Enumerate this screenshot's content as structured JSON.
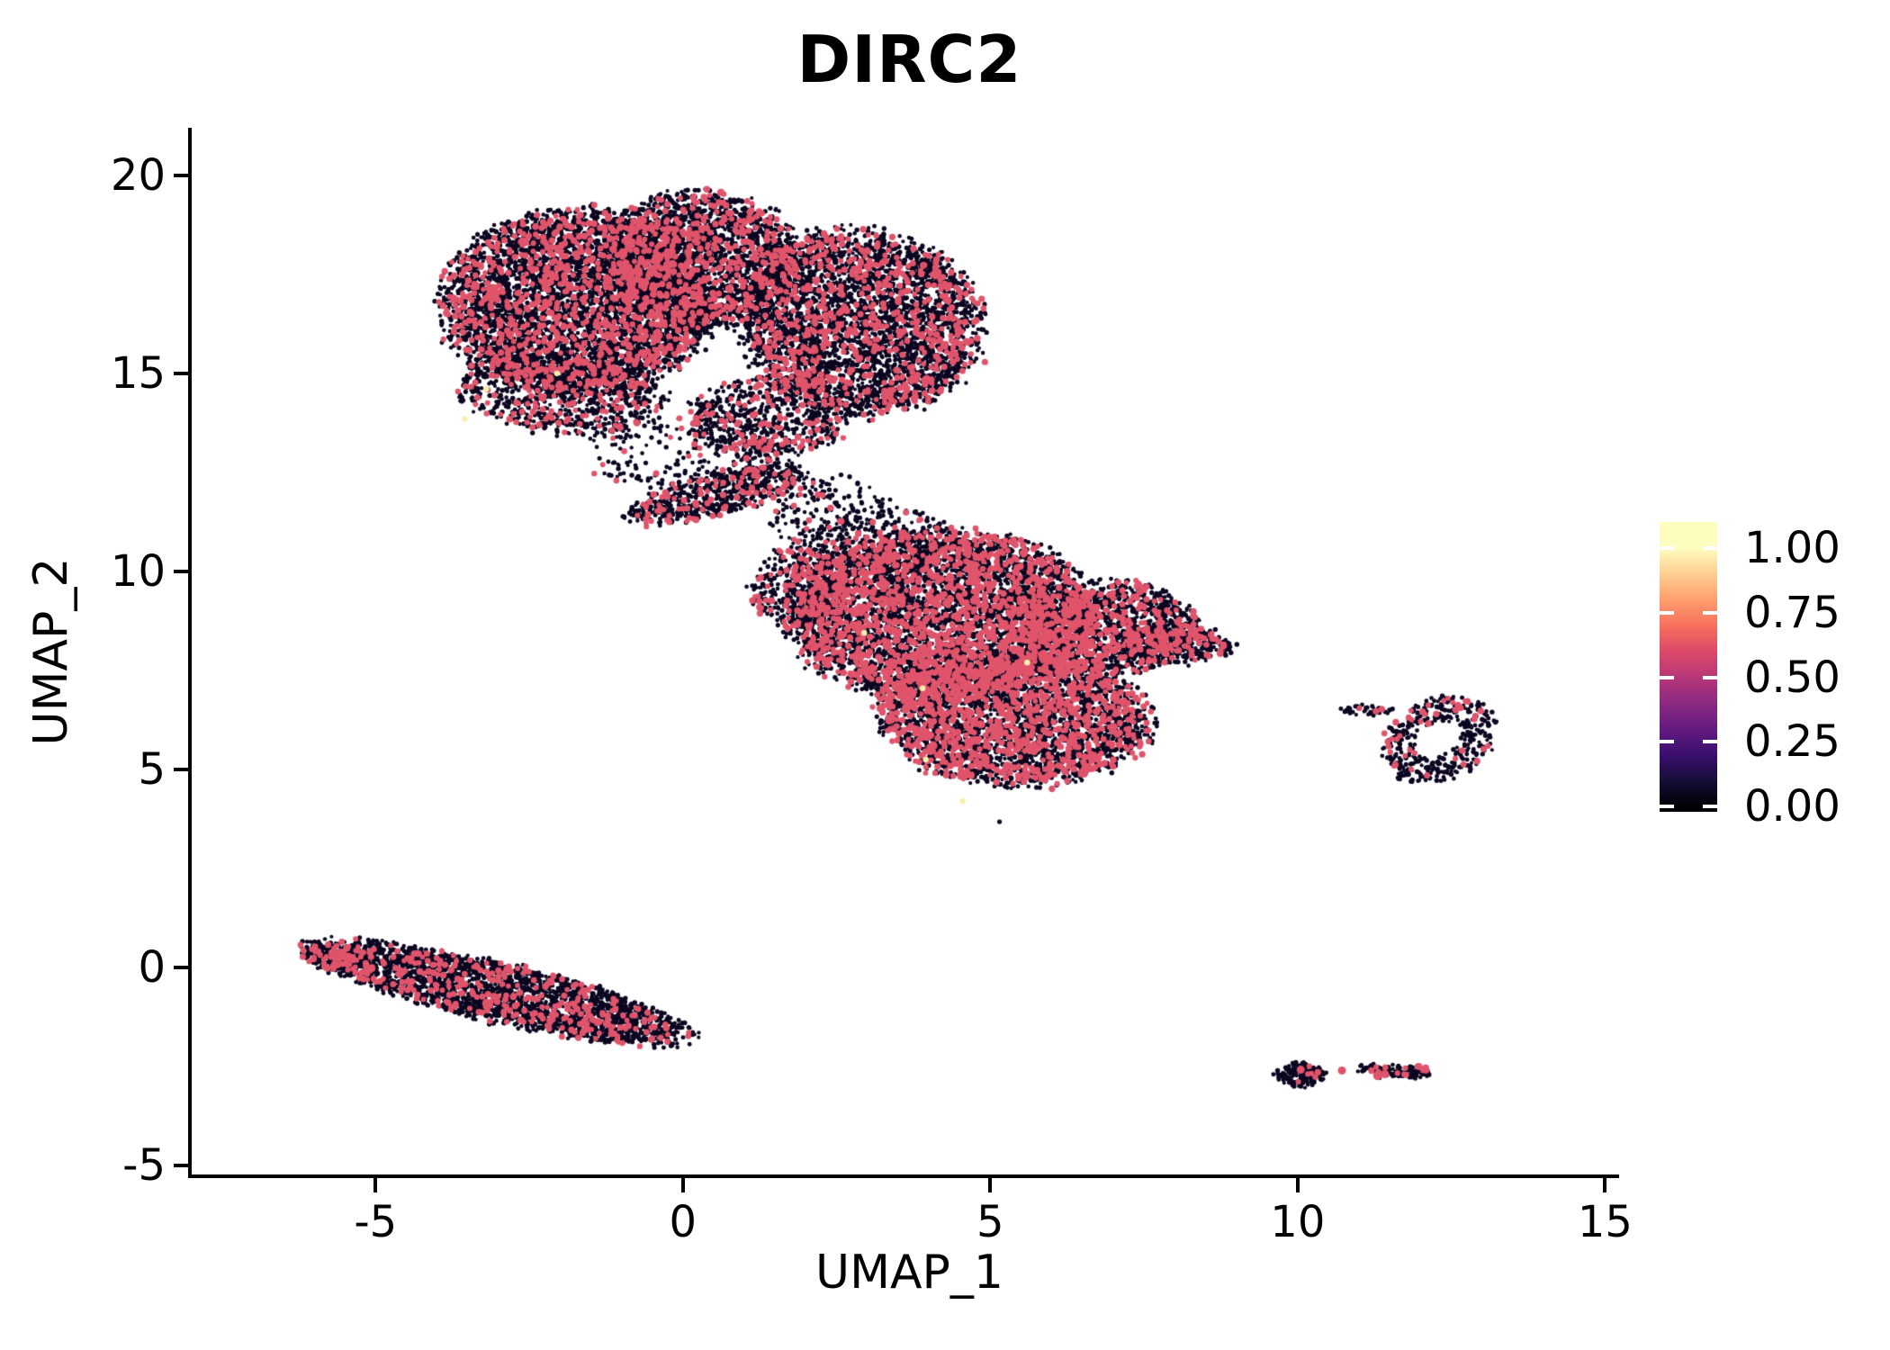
{
  "chart_data": {
    "type": "scatter",
    "title": "DIRC2",
    "xlabel": "UMAP_1",
    "ylabel": "UMAP_2",
    "x_ticks": [
      -5,
      0,
      5,
      10,
      15
    ],
    "x_tick_labels": [
      "-5",
      "0",
      "5",
      "10",
      "15"
    ],
    "y_ticks": [
      -5,
      0,
      5,
      10,
      15,
      20
    ],
    "y_tick_labels": [
      "-5",
      "0",
      "5",
      "10",
      "15",
      "20"
    ],
    "xlim": [
      -8.02,
      15.39
    ],
    "ylim": [
      -5.27,
      21.2
    ],
    "grid": false,
    "background": "#ffffff",
    "axis_color": "#000000",
    "text_color": "#000000",
    "legend": {
      "position": "right",
      "tick_labels": [
        "1.00",
        "0.75",
        "0.50",
        "0.25",
        "0.00"
      ],
      "tick_values": [
        1.0,
        0.75,
        0.5,
        0.25,
        0.0
      ],
      "bar_value_range": [
        -0.02,
        1.1
      ],
      "colormap": "magma",
      "colormap_stops": [
        {
          "v": 0.0,
          "c": "#000004"
        },
        {
          "v": 0.1,
          "c": "#140e36"
        },
        {
          "v": 0.2,
          "c": "#3b0f70"
        },
        {
          "v": 0.3,
          "c": "#641a80"
        },
        {
          "v": 0.4,
          "c": "#8c2981"
        },
        {
          "v": 0.5,
          "c": "#b73779"
        },
        {
          "v": 0.6,
          "c": "#de4968"
        },
        {
          "v": 0.7,
          "c": "#f7705c"
        },
        {
          "v": 0.8,
          "c": "#fe9f6d"
        },
        {
          "v": 0.9,
          "c": "#fecf92"
        },
        {
          "v": 1.0,
          "c": "#fcfdbf"
        }
      ]
    },
    "point_colors": {
      "zero": "#0c0620",
      "mid": "#e0546b",
      "high": "#f5efae"
    },
    "point_radius": {
      "zero": 2.4,
      "mid": 3.3,
      "high": 3.2
    },
    "seed": 20,
    "clusters": [
      {
        "name": "top-left-lobe",
        "shape": "ellipse",
        "center": [
          -1.7,
          16.8
        ],
        "rx": 2.2,
        "ry": 2.35,
        "rot_deg": -8,
        "n": 5000,
        "frac_mid": 0.17
      },
      {
        "name": "top-upper-bump",
        "shape": "ellipse",
        "center": [
          0.3,
          17.9
        ],
        "rx": 1.6,
        "ry": 1.7,
        "rot_deg": 0,
        "n": 2400,
        "frac_mid": 0.17
      },
      {
        "name": "top-right-lobe",
        "shape": "ellipse",
        "center": [
          2.9,
          16.3
        ],
        "rx": 1.95,
        "ry": 2.3,
        "rot_deg": 10,
        "n": 3800,
        "frac_mid": 0.17
      },
      {
        "name": "top-bottom-fringe-left",
        "shape": "ellipse",
        "center": [
          -2.0,
          14.5
        ],
        "rx": 1.7,
        "ry": 1.0,
        "rot_deg": -12,
        "n": 800,
        "frac_mid": 0.15
      },
      {
        "name": "top-bottom-fringe-mid",
        "shape": "ellipse",
        "center": [
          1.4,
          13.9
        ],
        "rx": 1.3,
        "ry": 1.0,
        "rot_deg": 0,
        "n": 700,
        "frac_mid": 0.15
      },
      {
        "name": "top-sparse-tail",
        "shape": "ellipse",
        "center": [
          0.1,
          13.0
        ],
        "rx": 1.7,
        "ry": 0.9,
        "rot_deg": 0,
        "n": 260,
        "frac_mid": 0.12
      },
      {
        "name": "bridge-arm",
        "shape": "ellipse",
        "center": [
          0.55,
          11.95
        ],
        "rx": 1.55,
        "ry": 0.5,
        "rot_deg": 22,
        "n": 620,
        "frac_mid": 0.14
      },
      {
        "name": "bridge-scatter",
        "shape": "ellipse",
        "center": [
          2.4,
          11.4
        ],
        "rx": 0.95,
        "ry": 1.05,
        "rot_deg": 0,
        "n": 200,
        "frac_mid": 0.12
      },
      {
        "name": "mid-upper",
        "shape": "ellipse",
        "center": [
          4.2,
          8.9
        ],
        "rx": 2.5,
        "ry": 2.15,
        "rot_deg": 0,
        "n": 5200,
        "frac_mid": 0.27
      },
      {
        "name": "mid-lower",
        "shape": "ellipse",
        "center": [
          5.4,
          6.3
        ],
        "rx": 2.25,
        "ry": 1.65,
        "rot_deg": -6,
        "n": 3300,
        "frac_mid": 0.27
      },
      {
        "name": "mid-right",
        "shape": "ellipse",
        "center": [
          6.9,
          8.6
        ],
        "rx": 1.5,
        "ry": 1.15,
        "rot_deg": 0,
        "n": 1300,
        "frac_mid": 0.22
      },
      {
        "name": "mid-right-tip",
        "shape": "ellipse",
        "center": [
          8.0,
          8.2
        ],
        "rx": 0.95,
        "ry": 0.5,
        "rot_deg": -8,
        "n": 320,
        "frac_mid": 0.18
      },
      {
        "name": "mid-top-trickle",
        "shape": "ellipse",
        "center": [
          3.1,
          10.7
        ],
        "rx": 1.4,
        "ry": 0.85,
        "rot_deg": 15,
        "n": 260,
        "frac_mid": 0.15
      },
      {
        "name": "mid-left-bump",
        "shape": "ellipse",
        "center": [
          1.9,
          9.6
        ],
        "rx": 0.8,
        "ry": 1.0,
        "rot_deg": 0,
        "n": 350,
        "frac_mid": 0.2
      },
      {
        "name": "island-ring",
        "shape": "ring",
        "center": [
          12.3,
          5.75
        ],
        "rx": 0.85,
        "ry": 1.15,
        "inner": 0.42,
        "rot_deg": -25,
        "n": 430,
        "frac_mid": 0.13
      },
      {
        "name": "island-streak",
        "shape": "ellipse",
        "center": [
          11.15,
          6.5
        ],
        "rx": 0.45,
        "ry": 0.12,
        "rot_deg": -5,
        "n": 40,
        "frac_mid": 0.08
      },
      {
        "name": "band-lower-left",
        "shape": "ellipse",
        "center": [
          -3.0,
          -0.62
        ],
        "rx": 3.3,
        "ry": 0.72,
        "rot_deg": -20,
        "n": 2600,
        "frac_mid": 0.13
      },
      {
        "name": "band-left-tip",
        "shape": "ellipse",
        "center": [
          -5.6,
          0.25
        ],
        "rx": 0.6,
        "ry": 0.3,
        "rot_deg": -20,
        "n": 180,
        "frac_mid": 0.3
      },
      {
        "name": "islet-left",
        "shape": "ellipse",
        "center": [
          10.05,
          -2.7
        ],
        "rx": 0.4,
        "ry": 0.3,
        "rot_deg": 0,
        "n": 170,
        "frac_mid": 0.04
      },
      {
        "name": "islet-right",
        "shape": "ellipse",
        "center": [
          11.6,
          -2.62
        ],
        "rx": 0.62,
        "ry": 0.15,
        "rot_deg": -6,
        "n": 140,
        "frac_mid": 0.08
      }
    ],
    "extra_points": [
      {
        "x": 5.15,
        "y": 3.68,
        "color": "zero",
        "r": 2.6
      },
      {
        "x": 8.9,
        "y": 8.1,
        "color": "zero",
        "r": 2.6
      },
      {
        "x": 10.05,
        "y": -2.58,
        "color": "mid",
        "r": 4.5
      },
      {
        "x": 10.72,
        "y": -2.6,
        "color": "mid",
        "r": 4.5
      },
      {
        "x": 11.3,
        "y": -2.73,
        "color": "mid",
        "r": 5.0
      },
      {
        "x": 11.42,
        "y": -2.69,
        "color": "mid",
        "r": 4.5
      },
      {
        "x": 11.97,
        "y": -2.5,
        "color": "mid",
        "r": 4.0
      },
      {
        "x": 12.08,
        "y": -2.54,
        "color": "mid",
        "r": 4.0
      }
    ],
    "high_points": [
      [
        -3.55,
        13.85
      ],
      [
        -3.2,
        14.6
      ],
      [
        -2.05,
        15.0
      ],
      [
        2.95,
        8.45
      ],
      [
        3.9,
        7.05
      ],
      [
        5.6,
        7.7
      ],
      [
        3.95,
        5.25
      ],
      [
        4.55,
        4.2
      ]
    ]
  }
}
